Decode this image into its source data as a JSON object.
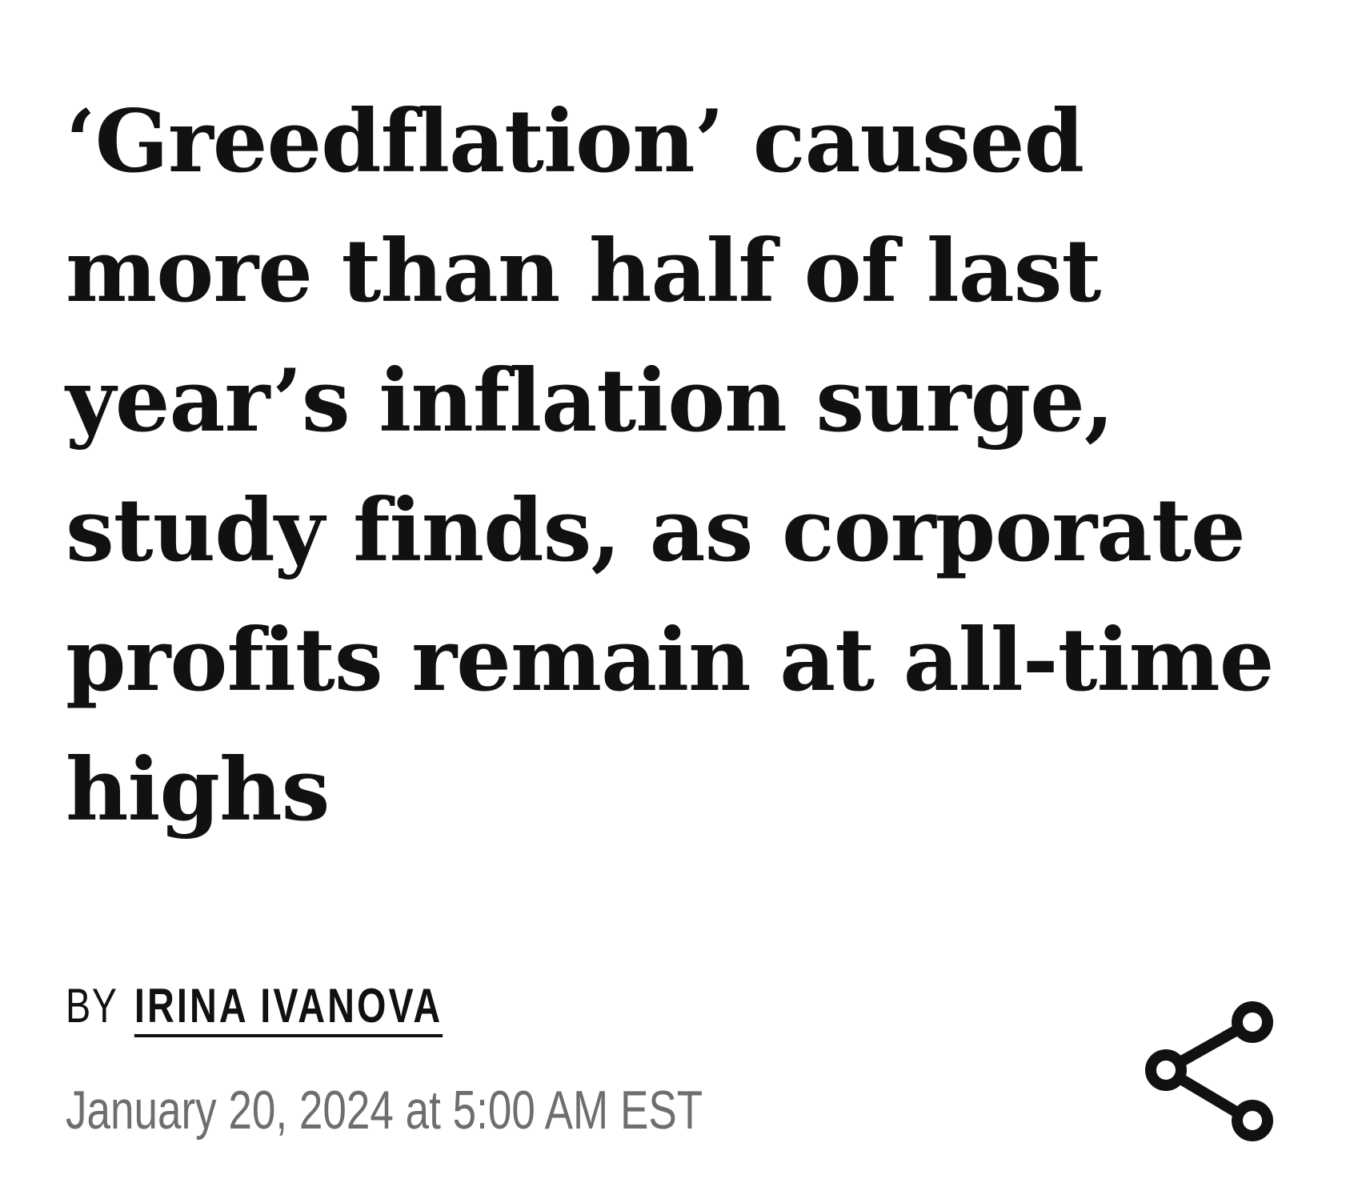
{
  "article": {
    "headline": "‘Greedflation’ caused\nmore than half of last\nyear’s inflation surge,\nstudy finds, as corporate\nprofits remain at all-time\nhighs",
    "byline_prefix": "BY",
    "author": "IRINA IVANOVA",
    "timestamp": "January 20, 2024 at 5:00 AM EST"
  },
  "share": {
    "icon": "share-icon"
  },
  "colors": {
    "text": "#111111",
    "timestamp": "#6e6e6e",
    "background": "#ffffff"
  }
}
